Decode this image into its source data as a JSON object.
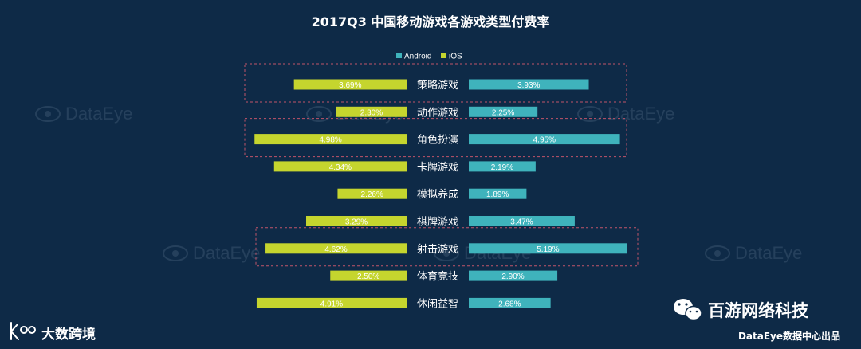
{
  "chart_data": {
    "type": "bar",
    "orientation": "horizontal",
    "layout": "butterfly",
    "title": "2017Q3 中国移动游戏各游戏类型付费率",
    "categories": [
      "策略游戏",
      "动作游戏",
      "角色扮演",
      "卡牌游戏",
      "模拟养成",
      "棋牌游戏",
      "射击游戏",
      "体育竞技",
      "休闲益智"
    ],
    "series": [
      {
        "name": "iOS",
        "color": "#c5d52e",
        "side": "left",
        "values": [
          3.69,
          2.3,
          4.98,
          4.34,
          2.26,
          3.29,
          4.62,
          2.5,
          4.91
        ],
        "labels": [
          "3.69%",
          "2.30%",
          "4.98%",
          "4.34%",
          "2.26%",
          "3.29%",
          "4.62%",
          "2.50%",
          "4.91%"
        ]
      },
      {
        "name": "Android",
        "color": "#3fb3bc",
        "side": "right",
        "values": [
          3.93,
          2.25,
          4.95,
          2.19,
          1.89,
          3.47,
          5.19,
          2.9,
          2.68
        ],
        "labels": [
          "3.93%",
          "2.25%",
          "4.95%",
          "2.19%",
          "1.89%",
          "3.47%",
          "5.19%",
          "2.90%",
          "2.68%"
        ]
      }
    ],
    "legend": {
      "position": "top-center",
      "order": [
        "Android",
        "iOS"
      ]
    },
    "highlighted_categories": [
      "策略游戏",
      "角色扮演",
      "射击游戏"
    ],
    "unit": "%"
  },
  "watermark": "DataEye",
  "brand": {
    "bottom_left": "大数跨境",
    "bottom_right_title": "百游网络科技",
    "bottom_right_subtitle": "DataEye数据中心出品"
  },
  "colors": {
    "background": "#0e2a47",
    "text": "#ffffff",
    "highlight_border": "#c0546a",
    "ios": "#c5d52e",
    "android": "#3fb3bc"
  }
}
